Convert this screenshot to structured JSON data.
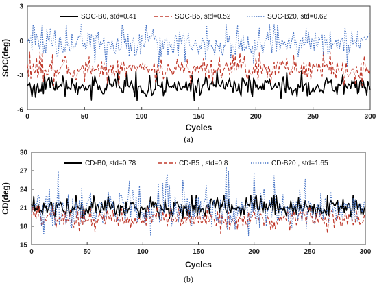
{
  "chart_data": [
    {
      "type": "line",
      "panel_label": "(a)",
      "xlabel": "Cycles",
      "ylabel": "SOC(deg)",
      "xlim": [
        0,
        300
      ],
      "ylim": [
        -6,
        3
      ],
      "xticks": [
        0,
        50,
        100,
        150,
        200,
        250,
        300
      ],
      "yticks": [
        3,
        0,
        -3,
        -6
      ],
      "xtick_labels": [
        "0",
        "50",
        "100",
        "150",
        "200",
        "250",
        "300"
      ],
      "ytick_labels": [
        "3",
        "0",
        "-3",
        "-6"
      ],
      "grid": false,
      "legend_position": "top",
      "series": [
        {
          "name": "SOC-B0, std=0.41",
          "color": "#000000",
          "style": "solid",
          "mean": -4.0,
          "std": 0.41,
          "min": -5.2,
          "max": -2.6
        },
        {
          "name": "SOC-B5, std=0.52",
          "color": "#c0392b",
          "style": "dashed",
          "mean": -2.5,
          "std": 0.52,
          "min": -3.9,
          "max": -1.0
        },
        {
          "name": "SOC-B20, std=0.62",
          "color": "#4472c4",
          "style": "dotted",
          "mean": -0.3,
          "std": 0.62,
          "min": -2.2,
          "max": 1.4
        }
      ]
    },
    {
      "type": "line",
      "panel_label": "(b)",
      "xlabel": "Cycles",
      "ylabel": "CD(deg)",
      "xlim": [
        0,
        300
      ],
      "ylim": [
        15,
        30
      ],
      "xticks": [
        0,
        50,
        100,
        150,
        200,
        250,
        300
      ],
      "yticks": [
        30,
        27,
        24,
        21,
        18,
        15
      ],
      "xtick_labels": [
        "0",
        "50",
        "100",
        "150",
        "200",
        "250",
        "300"
      ],
      "ytick_labels": [
        "30",
        "27",
        "24",
        "21",
        "18",
        "15"
      ],
      "grid": false,
      "legend_position": "top",
      "series": [
        {
          "name": "CD-B0, std=0.78",
          "color": "#000000",
          "style": "solid",
          "mean": 21.0,
          "std": 0.78,
          "min": 19.3,
          "max": 23.0
        },
        {
          "name": "CD-B5 , std=0.8",
          "color": "#c0392b",
          "style": "dashed",
          "mean": 19.2,
          "std": 0.8,
          "min": 16.8,
          "max": 21.2
        },
        {
          "name": "CD-B20 , std=1.65",
          "color": "#4472c4",
          "style": "dotted",
          "mean": 20.8,
          "std": 1.65,
          "min": 16.5,
          "max": 28.6
        }
      ]
    }
  ]
}
